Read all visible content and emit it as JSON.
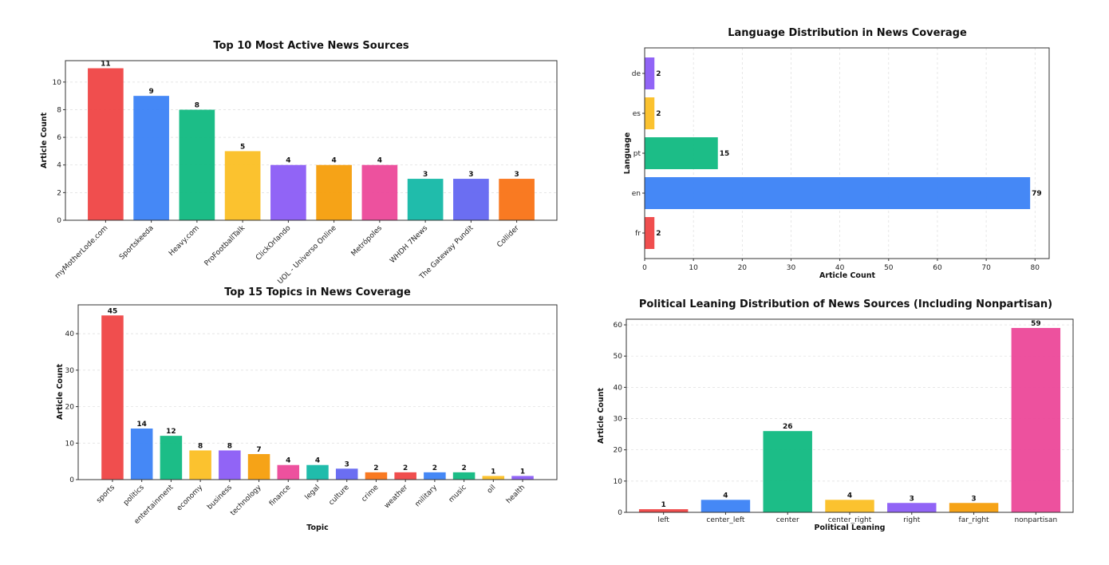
{
  "chart_data": [
    {
      "type": "bar",
      "title": "Top 10 Most Active News Sources",
      "xlabel": "",
      "ylabel": "Article Count",
      "categories": [
        "myMotherLode.com",
        "Sportskeeda",
        "Heavy.com",
        "ProFootballTalk",
        "ClickOrlando",
        "UOL - Universo Online",
        "Metrópoles",
        "WHDH 7News",
        "The Gateway Pundit",
        "Collider"
      ],
      "values": [
        11,
        9,
        8,
        5,
        4,
        4,
        4,
        3,
        3,
        3
      ],
      "colors": [
        "#ef4444",
        "#3b82f6",
        "#10b981",
        "#fbbf24",
        "#8b5cf6",
        "#f59e0b",
        "#ec4899",
        "#14b8a6",
        "#6366f1",
        "#f97316"
      ],
      "ylim": [
        0,
        11.55
      ],
      "yticks": [
        0,
        2,
        4,
        6,
        8,
        10
      ],
      "grid": true,
      "orientation": "vertical"
    },
    {
      "type": "bar",
      "title": "Language Distribution in News Coverage",
      "xlabel": "Article Count",
      "ylabel": "Language",
      "categories": [
        "fr",
        "en",
        "pt",
        "es",
        "de"
      ],
      "values": [
        2,
        79,
        15,
        2,
        2
      ],
      "colors": [
        "#ef4444",
        "#3b82f6",
        "#10b981",
        "#fbbf24",
        "#8b5cf6"
      ],
      "xlim": [
        0,
        82.9
      ],
      "xticks": [
        0,
        10,
        20,
        30,
        40,
        50,
        60,
        70,
        80
      ],
      "grid": true,
      "orientation": "horizontal"
    },
    {
      "type": "bar",
      "title": "Top 15 Topics in News Coverage",
      "xlabel": "Topic",
      "ylabel": "Article Count",
      "categories": [
        "sports",
        "politics",
        "entertainment",
        "economy",
        "business",
        "technology",
        "finance",
        "legal",
        "culture",
        "crime",
        "weather",
        "military",
        "music",
        "oil",
        "health"
      ],
      "values": [
        45,
        14,
        12,
        8,
        8,
        7,
        4,
        4,
        3,
        2,
        2,
        2,
        2,
        1,
        1
      ],
      "colors": [
        "#ef4444",
        "#3b82f6",
        "#10b981",
        "#fbbf24",
        "#8b5cf6",
        "#f59e0b",
        "#ec4899",
        "#14b8a6",
        "#6366f1",
        "#f97316",
        "#ef4444",
        "#3b82f6",
        "#10b981",
        "#fbbf24",
        "#8b5cf6"
      ],
      "ylim": [
        0,
        47.9
      ],
      "yticks": [
        0,
        10,
        20,
        30,
        40
      ],
      "grid": true,
      "orientation": "vertical"
    },
    {
      "type": "bar",
      "title": "Political Leaning Distribution of News Sources (Including Nonpartisan)",
      "xlabel": "Political Leaning",
      "ylabel": "Article Count",
      "categories": [
        "left",
        "center_left",
        "center",
        "center_right",
        "right",
        "far_right",
        "nonpartisan"
      ],
      "values": [
        1,
        4,
        26,
        4,
        3,
        3,
        59
      ],
      "colors": [
        "#ef4444",
        "#3b82f6",
        "#10b981",
        "#fbbf24",
        "#8b5cf6",
        "#f59e0b",
        "#ec4899"
      ],
      "ylim": [
        0,
        61.8
      ],
      "yticks": [
        0,
        10,
        20,
        30,
        40,
        50,
        60
      ],
      "grid": true,
      "orientation": "vertical"
    }
  ]
}
